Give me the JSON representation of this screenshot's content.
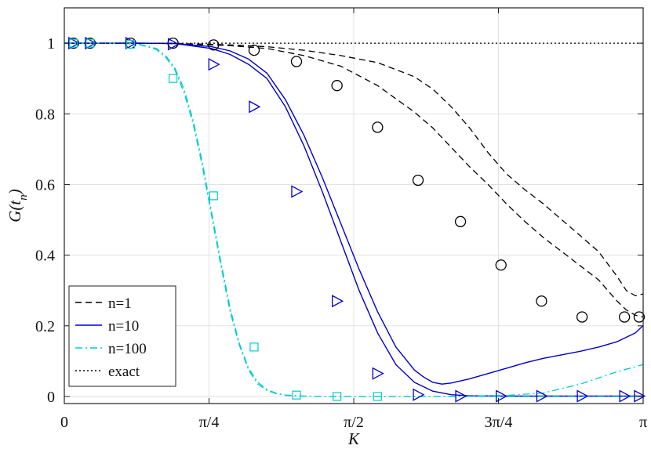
{
  "chart_data": {
    "type": "line",
    "xlabel": "K",
    "ylabel": "G(t_n)",
    "xlim": [
      0,
      3.14159
    ],
    "ylim": [
      -0.02,
      1.1
    ],
    "x_ticks": [
      {
        "value": 0,
        "label": "0"
      },
      {
        "value": 0.7854,
        "label": "π/4"
      },
      {
        "value": 1.5708,
        "label": "π/2"
      },
      {
        "value": 2.3562,
        "label": "3π/4"
      },
      {
        "value": 3.14159,
        "label": "π"
      }
    ],
    "y_ticks": [
      {
        "value": 0,
        "label": "0"
      },
      {
        "value": 0.2,
        "label": "0.2"
      },
      {
        "value": 0.4,
        "label": "0.4"
      },
      {
        "value": 0.6,
        "label": "0.6"
      },
      {
        "value": 0.8,
        "label": "0.8"
      },
      {
        "value": 1,
        "label": "1"
      }
    ],
    "grid": true,
    "legend_position": "bottom-left",
    "series": [
      {
        "name": "n=1",
        "style": "dashed",
        "color": "#000000",
        "x": [
          0,
          0.3,
          0.6,
          0.9,
          1.1,
          1.3,
          1.5,
          1.7,
          1.9,
          2.0,
          2.1,
          2.2,
          2.3,
          2.4,
          2.5,
          2.6,
          2.7,
          2.8,
          2.9,
          3.0,
          3.05,
          3.1,
          3.14
        ],
        "values": [
          1,
          1,
          0.999,
          0.995,
          0.99,
          0.98,
          0.965,
          0.945,
          0.905,
          0.87,
          0.82,
          0.76,
          0.69,
          0.63,
          0.585,
          0.545,
          0.5,
          0.455,
          0.41,
          0.34,
          0.3,
          0.285,
          0.29
        ]
      },
      {
        "name": "n=1",
        "style": "dashed",
        "color": "#000000",
        "x": [
          0,
          0.3,
          0.6,
          0.9,
          1.1,
          1.3,
          1.5,
          1.7,
          1.9,
          2.0,
          2.1,
          2.2,
          2.3,
          2.4,
          2.5,
          2.6,
          2.7,
          2.8,
          2.9,
          3.0,
          3.05,
          3.1,
          3.14
        ],
        "values": [
          1,
          1,
          0.999,
          0.993,
          0.985,
          0.965,
          0.935,
          0.88,
          0.805,
          0.76,
          0.705,
          0.65,
          0.6,
          0.545,
          0.495,
          0.45,
          0.41,
          0.37,
          0.33,
          0.27,
          0.245,
          0.23,
          0.225
        ]
      },
      {
        "name": "n=10",
        "style": "solid",
        "color": "#0000cc",
        "x": [
          0,
          0.4,
          0.6,
          0.8,
          0.9,
          1.0,
          1.1,
          1.2,
          1.3,
          1.4,
          1.5,
          1.6,
          1.7,
          1.8,
          1.9,
          1.95,
          2.0,
          2.05,
          2.1,
          2.2,
          2.3,
          2.4,
          2.5,
          2.6,
          2.7,
          2.8,
          2.9,
          3.0,
          3.1,
          3.14
        ],
        "values": [
          1,
          1,
          0.999,
          0.99,
          0.978,
          0.955,
          0.915,
          0.84,
          0.74,
          0.62,
          0.49,
          0.36,
          0.24,
          0.14,
          0.075,
          0.055,
          0.04,
          0.035,
          0.038,
          0.05,
          0.065,
          0.08,
          0.095,
          0.108,
          0.118,
          0.128,
          0.14,
          0.155,
          0.18,
          0.2
        ]
      },
      {
        "name": "n=10",
        "style": "solid",
        "color": "#0000cc",
        "x": [
          0,
          0.4,
          0.6,
          0.8,
          0.9,
          1.0,
          1.1,
          1.2,
          1.3,
          1.4,
          1.5,
          1.6,
          1.7,
          1.8,
          1.9,
          2.0,
          2.1,
          2.2,
          2.4,
          2.6,
          2.8,
          3.0,
          3.14
        ],
        "values": [
          1,
          1,
          0.999,
          0.985,
          0.968,
          0.94,
          0.9,
          0.82,
          0.71,
          0.58,
          0.44,
          0.3,
          0.18,
          0.09,
          0.04,
          0.015,
          0.005,
          0.002,
          0.001,
          0.001,
          0.001,
          0.001,
          0.001
        ]
      },
      {
        "name": "n=100",
        "style": "dashdot",
        "color": "#00cccc",
        "x": [
          0,
          0.3,
          0.4,
          0.5,
          0.55,
          0.6,
          0.65,
          0.7,
          0.75,
          0.8,
          0.85,
          0.9,
          0.95,
          1.0,
          1.05,
          1.1,
          1.15,
          1.2,
          1.3,
          1.4,
          1.6,
          1.8,
          2.0,
          2.2,
          2.4,
          2.6,
          2.8,
          3.0,
          3.14
        ],
        "values": [
          1,
          1,
          0.998,
          0.985,
          0.965,
          0.93,
          0.87,
          0.78,
          0.66,
          0.52,
          0.38,
          0.25,
          0.15,
          0.08,
          0.04,
          0.02,
          0.009,
          0.004,
          0.001,
          0,
          0,
          0,
          0,
          0.001,
          0.003,
          0.01,
          0.035,
          0.07,
          0.09
        ]
      },
      {
        "name": "n=100",
        "style": "dashdot",
        "color": "#00cccc",
        "x": [
          0,
          0.3,
          0.4,
          0.5,
          0.55,
          0.6,
          0.65,
          0.7,
          0.75,
          0.8,
          0.85,
          0.9,
          0.95,
          1.0,
          1.05,
          1.1,
          1.15,
          1.2,
          1.3,
          1.4,
          1.6,
          2.0,
          2.4,
          2.8,
          3.14
        ],
        "values": [
          1,
          1,
          0.997,
          0.982,
          0.96,
          0.925,
          0.86,
          0.77,
          0.65,
          0.51,
          0.37,
          0.24,
          0.145,
          0.075,
          0.035,
          0.017,
          0.008,
          0.003,
          0.001,
          0,
          0,
          0,
          0,
          0,
          0
        ]
      },
      {
        "name": "exact",
        "style": "dotted",
        "color": "#000000",
        "x": [
          0,
          3.14159
        ],
        "values": [
          1,
          1
        ]
      }
    ],
    "markers": [
      {
        "series": "n=1",
        "shape": "circle",
        "color": "#000000",
        "x": [
          0.05,
          0.14,
          0.36,
          0.59,
          0.81,
          1.03,
          1.26,
          1.48,
          1.7,
          1.92,
          2.15,
          2.37,
          2.59,
          2.81,
          3.04,
          3.12
        ],
        "values": [
          1,
          1,
          1,
          1,
          0.995,
          0.98,
          0.948,
          0.88,
          0.762,
          0.612,
          0.495,
          0.372,
          0.27,
          0.225,
          0.225,
          0.225
        ]
      },
      {
        "series": "n=10",
        "shape": "triangle",
        "color": "#0000cc",
        "x": [
          0.05,
          0.14,
          0.36,
          0.59,
          0.81,
          1.03,
          1.26,
          1.48,
          1.7,
          1.92,
          2.15,
          2.37,
          2.59,
          2.81,
          3.04,
          3.12
        ],
        "values": [
          1,
          1,
          1,
          0.997,
          0.94,
          0.82,
          0.58,
          0.27,
          0.065,
          0.005,
          0.001,
          0.001,
          0.001,
          0.001,
          0.001,
          0.001
        ]
      },
      {
        "series": "n=100",
        "shape": "square",
        "color": "#00cccc",
        "x": [
          0.05,
          0.14,
          0.36,
          0.59,
          0.81,
          1.03,
          1.26,
          1.48,
          1.7
        ],
        "values": [
          1,
          1,
          0.997,
          0.9,
          0.568,
          0.14,
          0.004,
          0,
          0
        ]
      }
    ],
    "legend": [
      {
        "label": "n=1",
        "style": "dashed",
        "color": "#000000"
      },
      {
        "label": "n=10",
        "style": "solid",
        "color": "#0000cc"
      },
      {
        "label": "n=100",
        "style": "dashdot",
        "color": "#00cccc"
      },
      {
        "label": "exact",
        "style": "dotted",
        "color": "#000000"
      }
    ]
  }
}
